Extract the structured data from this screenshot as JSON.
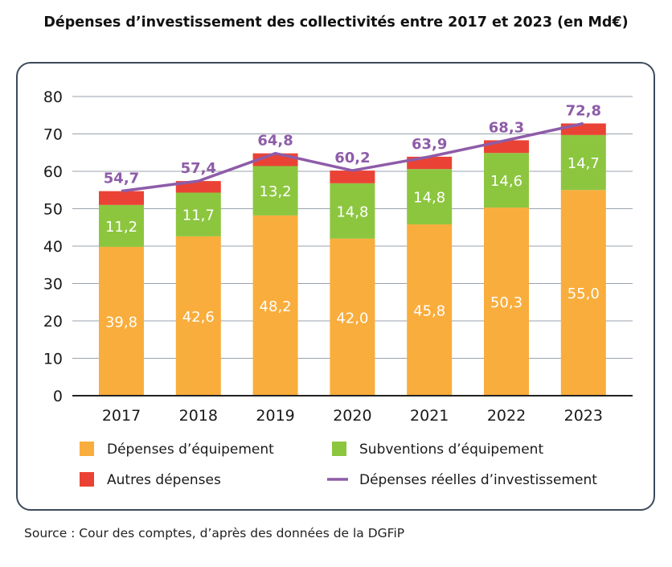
{
  "title": "Dépenses d’investissement des collectivités entre 2017 et 2023 (en Md€)",
  "source": "Source : Cour des comptes, d’après des données de la DGFiP",
  "colors": {
    "equipement": "#f9ad3c",
    "subventions": "#8cc63f",
    "autres": "#ea4335",
    "line": "#8e5ca8",
    "grid": "#9aa3ad",
    "panel_border": "#3d4a5c"
  },
  "chart_data": {
    "type": "bar",
    "stacked": true,
    "categories": [
      "2017",
      "2018",
      "2019",
      "2020",
      "2021",
      "2022",
      "2023"
    ],
    "ylim": [
      0,
      80
    ],
    "yticks": [
      "0",
      "10",
      "20",
      "30",
      "40",
      "50",
      "60",
      "70",
      "80"
    ],
    "grid": true,
    "legend_position": "bottom",
    "series": [
      {
        "name": "Dépenses d’équipement",
        "values": [
          39.8,
          42.6,
          48.2,
          42.0,
          45.8,
          50.3,
          55.0
        ],
        "labels": [
          "39,8",
          "42,6",
          "48,2",
          "42,0",
          "45,8",
          "50,3",
          "55,0"
        ],
        "color": "#f9ad3c"
      },
      {
        "name": "Subventions d’équipement",
        "values": [
          11.2,
          11.7,
          13.2,
          14.8,
          14.8,
          14.6,
          14.7
        ],
        "labels": [
          "11,2",
          "11,7",
          "13,2",
          "14,8",
          "14,8",
          "14,6",
          "14,7"
        ],
        "color": "#8cc63f"
      },
      {
        "name": "Autres dépenses",
        "values": [
          3.7,
          3.1,
          3.4,
          3.4,
          3.3,
          3.4,
          3.1
        ],
        "color": "#ea4335"
      }
    ],
    "line": {
      "name": "Dépenses réelles d’investissement",
      "values": [
        54.7,
        57.4,
        64.8,
        60.2,
        63.9,
        68.3,
        72.8
      ],
      "labels": [
        "54,7",
        "57,4",
        "64,8",
        "60,2",
        "63,9",
        "68,3",
        "72,8"
      ],
      "color": "#8e5ca8"
    }
  }
}
